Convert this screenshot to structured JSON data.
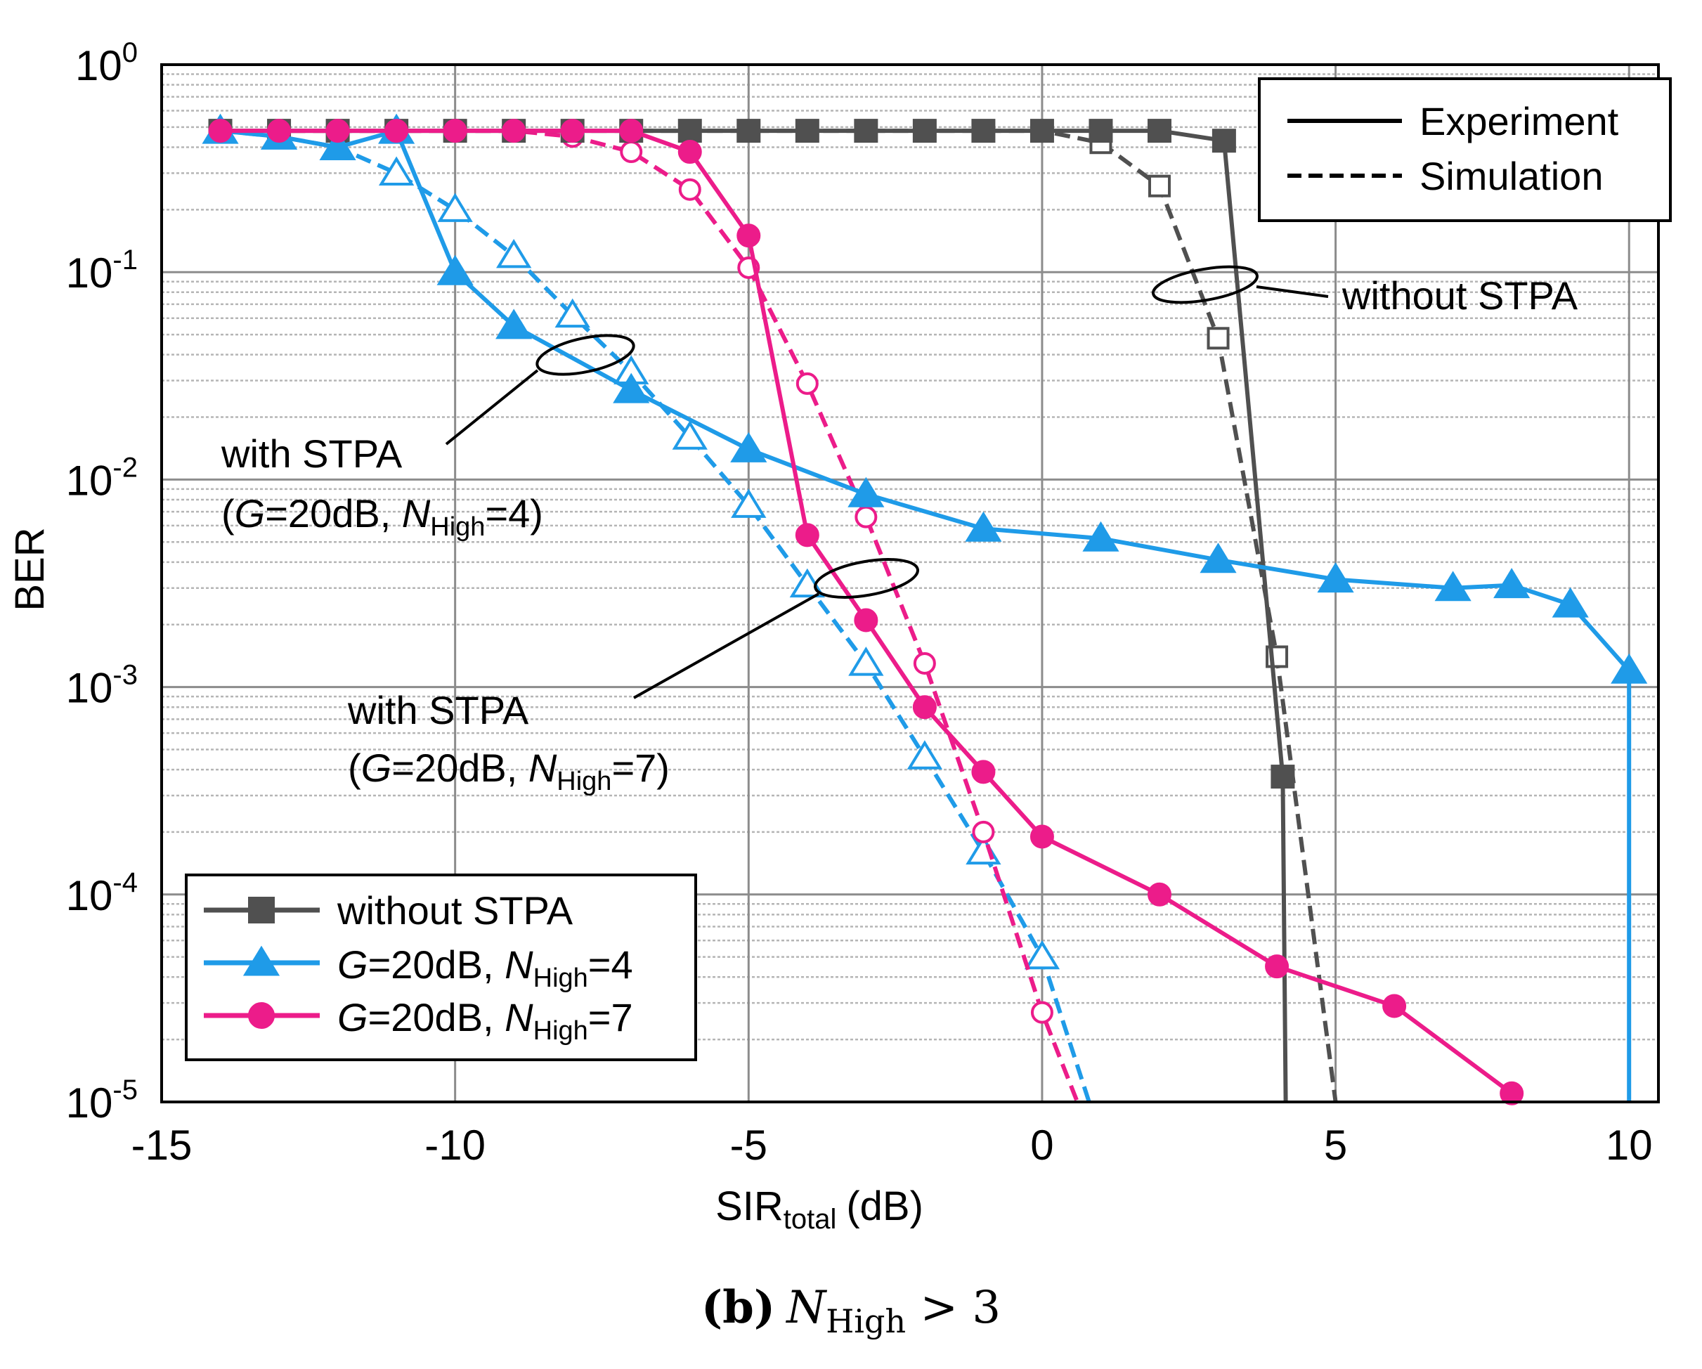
{
  "chart_data": {
    "type": "line",
    "xlabel": "SIR",
    "xlabel_sub": "total",
    "xlabel_unit": "(dB)",
    "ylabel": "BER",
    "xlim": [
      -15,
      10.5
    ],
    "ylim": [
      1e-05,
      1
    ],
    "yscale": "log",
    "x_ticks": [
      -15,
      -10,
      -5,
      0,
      5,
      10
    ],
    "x_tick_labels": [
      "-15",
      "-10",
      "-5",
      "0",
      "5",
      "10"
    ],
    "y_ticks": [
      {
        "value": 1,
        "base": "10",
        "exp": "0"
      },
      {
        "value": 0.1,
        "base": "10",
        "exp": "-1"
      },
      {
        "value": 0.01,
        "base": "10",
        "exp": "-2"
      },
      {
        "value": 0.001,
        "base": "10",
        "exp": "-3"
      },
      {
        "value": 0.0001,
        "base": "10",
        "exp": "-4"
      },
      {
        "value": 1e-05,
        "base": "10",
        "exp": "-5"
      }
    ],
    "grid": true,
    "caption": {
      "b": "(b)",
      "n": "N",
      "sub": "High",
      "rest": " > 3"
    },
    "colors": {
      "without": "#505050",
      "n4": "#1f9be8",
      "n7": "#ec1c8a"
    },
    "series": [
      {
        "name": "without STPA (Experiment)",
        "key": "without",
        "style": "solid",
        "marker": "square",
        "fill": true,
        "x": [
          -14,
          -13,
          -12,
          -11,
          -10,
          -9,
          -8,
          -7,
          -6,
          -5,
          -4,
          -3,
          -2,
          -1,
          0,
          1,
          2,
          3.1,
          4.1,
          4.15
        ],
        "y": [
          0.48,
          0.48,
          0.48,
          0.48,
          0.48,
          0.48,
          0.48,
          0.48,
          0.48,
          0.48,
          0.48,
          0.48,
          0.48,
          0.48,
          0.48,
          0.48,
          0.48,
          0.43,
          0.00037,
          1e-05
        ]
      },
      {
        "name": "without STPA (Simulation)",
        "key": "without",
        "style": "dashed",
        "marker": "square",
        "fill": false,
        "x": [
          -14,
          -13,
          -12,
          -11,
          -10,
          -9,
          -8,
          -7,
          -6,
          -5,
          -4,
          -3,
          -2,
          -1,
          0,
          1,
          2,
          3,
          4,
          5
        ],
        "y": [
          0.48,
          0.48,
          0.48,
          0.48,
          0.48,
          0.48,
          0.48,
          0.48,
          0.48,
          0.48,
          0.48,
          0.48,
          0.48,
          0.48,
          0.48,
          0.42,
          0.26,
          0.048,
          0.0014,
          1e-05
        ]
      },
      {
        "name": "G=20dB, NHigh=4 (Experiment)",
        "key": "n4",
        "style": "solid",
        "marker": "triangle",
        "fill": true,
        "x": [
          -14,
          -13,
          -12,
          -11,
          -10,
          -9,
          -7,
          -5,
          -3,
          -1,
          1,
          3,
          5,
          7,
          8,
          9,
          10,
          10
        ],
        "y": [
          0.48,
          0.45,
          0.4,
          0.48,
          0.1,
          0.055,
          0.027,
          0.014,
          0.0085,
          0.0058,
          0.0052,
          0.0041,
          0.0033,
          0.003,
          0.0031,
          0.0025,
          0.0012,
          1e-05
        ]
      },
      {
        "name": "G=20dB, NHigh=4 (Simulation)",
        "key": "n4",
        "style": "dashed",
        "marker": "triangle",
        "fill": false,
        "x": [
          -14,
          -13,
          -12,
          -11,
          -10,
          -9,
          -8,
          -7,
          -6,
          -5,
          -4,
          -3,
          -2,
          -1,
          0,
          0.8
        ],
        "y": [
          0.48,
          0.45,
          0.4,
          0.3,
          0.2,
          0.12,
          0.062,
          0.033,
          0.016,
          0.0075,
          0.0031,
          0.0013,
          0.00046,
          0.00016,
          5e-05,
          1e-05
        ]
      },
      {
        "name": "G=20dB, NHigh=7 (Experiment)",
        "key": "n7",
        "style": "solid",
        "marker": "circle",
        "fill": true,
        "x": [
          -14,
          -13,
          -12,
          -11,
          -10,
          -9,
          -8,
          -7,
          -6,
          -5,
          -4,
          -3,
          -2,
          -1,
          0,
          2,
          4,
          6,
          8
        ],
        "y": [
          0.48,
          0.48,
          0.48,
          0.48,
          0.48,
          0.48,
          0.48,
          0.48,
          0.38,
          0.15,
          0.0054,
          0.0021,
          0.0008,
          0.00039,
          0.00019,
          0.0001,
          4.5e-05,
          2.9e-05,
          1.1e-05
        ]
      },
      {
        "name": "G=20dB, NHigh=7 (Simulation)",
        "key": "n7",
        "style": "dashed",
        "marker": "circle",
        "fill": false,
        "x": [
          -14,
          -13,
          -12,
          -11,
          -10,
          -9,
          -8,
          -7,
          -6,
          -5,
          -4,
          -3,
          -2,
          -1,
          0,
          0.6
        ],
        "y": [
          0.48,
          0.48,
          0.48,
          0.48,
          0.48,
          0.48,
          0.45,
          0.38,
          0.25,
          0.105,
          0.029,
          0.0066,
          0.0013,
          0.0002,
          2.7e-05,
          1e-05
        ]
      }
    ],
    "legend_style": {
      "solid": "Experiment",
      "dashed": "Simulation"
    },
    "legend_series": [
      {
        "key": "without",
        "marker": "square",
        "parts": [
          "without STPA"
        ]
      },
      {
        "key": "n4",
        "marker": "triangle",
        "parts": [
          "G",
          "=20dB, ",
          "N",
          "High",
          "=4"
        ]
      },
      {
        "key": "n7",
        "marker": "circle",
        "parts": [
          "G",
          "=20dB, ",
          "N",
          "High",
          "=7"
        ]
      }
    ],
    "annotations": [
      {
        "id": "without",
        "lines": [
          {
            "text": "without STPA"
          }
        ]
      },
      {
        "id": "n4",
        "lines": [
          {
            "text": "with STPA"
          },
          {
            "parts": [
              "(",
              "G",
              "=20dB, ",
              "N",
              "High",
              "=4)"
            ]
          }
        ]
      },
      {
        "id": "n7",
        "lines": [
          {
            "text": "with STPA"
          },
          {
            "parts": [
              "(",
              "G",
              "=20dB, ",
              "N",
              "High",
              "=7)"
            ]
          }
        ]
      }
    ]
  }
}
